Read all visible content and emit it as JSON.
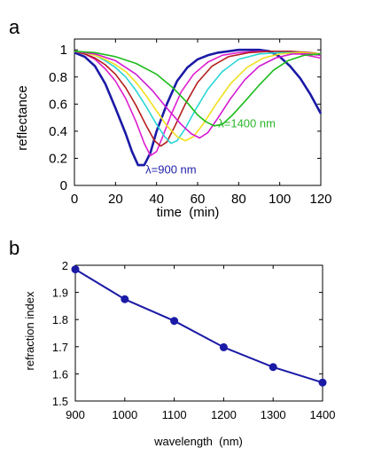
{
  "chart_data": [
    {
      "panel_label": "a",
      "type": "line",
      "xlabel": "time  (min)",
      "ylabel": "reflectance",
      "xlim": [
        0,
        120
      ],
      "ylim": [
        0,
        1.08
      ],
      "xticks": [
        "0",
        "20",
        "40",
        "60",
        "80",
        "100",
        "120"
      ],
      "yticks": [
        "0",
        "0.2",
        "0.4",
        "0.6",
        "0.8",
        "1"
      ],
      "annotations": [
        {
          "text": "λ=900 nm",
          "x": 47,
          "y": 0.09,
          "color": "#1f1fa8"
        },
        {
          "text": "λ=1400 nm",
          "x": 84,
          "y": 0.43,
          "color": "#2bb52b"
        }
      ],
      "series": [
        {
          "color": "#1a1aa6",
          "values": [
            [
              0,
              0.98
            ],
            [
              5,
              0.95
            ],
            [
              10,
              0.88
            ],
            [
              15,
              0.75
            ],
            [
              20,
              0.57
            ],
            [
              25,
              0.38
            ],
            [
              28,
              0.25
            ],
            [
              31,
              0.15
            ],
            [
              34,
              0.15
            ],
            [
              37,
              0.24
            ],
            [
              40,
              0.4
            ],
            [
              45,
              0.6
            ],
            [
              50,
              0.77
            ],
            [
              55,
              0.87
            ],
            [
              60,
              0.93
            ],
            [
              65,
              0.96
            ],
            [
              70,
              0.98
            ],
            [
              75,
              0.99
            ],
            [
              80,
              1.0
            ],
            [
              85,
              1.0
            ],
            [
              90,
              1.0
            ],
            [
              95,
              0.99
            ],
            [
              100,
              0.95
            ],
            [
              105,
              0.88
            ],
            [
              110,
              0.79
            ],
            [
              115,
              0.67
            ],
            [
              120,
              0.53
            ]
          ]
        },
        {
          "color": "#e01ecf",
          "values": [
            [
              0,
              0.99
            ],
            [
              5,
              0.97
            ],
            [
              10,
              0.93
            ],
            [
              15,
              0.86
            ],
            [
              20,
              0.77
            ],
            [
              25,
              0.64
            ],
            [
              30,
              0.47
            ],
            [
              34,
              0.31
            ],
            [
              37,
              0.22
            ],
            [
              40,
              0.25
            ],
            [
              43,
              0.36
            ],
            [
              47,
              0.52
            ],
            [
              52,
              0.69
            ],
            [
              58,
              0.82
            ],
            [
              65,
              0.91
            ],
            [
              72,
              0.96
            ],
            [
              80,
              0.98
            ],
            [
              90,
              0.99
            ],
            [
              100,
              0.99
            ],
            [
              110,
              0.97
            ],
            [
              120,
              0.94
            ]
          ]
        },
        {
          "color": "#b51c1c",
          "values": [
            [
              0,
              0.99
            ],
            [
              5,
              0.97
            ],
            [
              10,
              0.94
            ],
            [
              15,
              0.89
            ],
            [
              20,
              0.82
            ],
            [
              25,
              0.72
            ],
            [
              30,
              0.59
            ],
            [
              35,
              0.44
            ],
            [
              39,
              0.33
            ],
            [
              42,
              0.29
            ],
            [
              45,
              0.32
            ],
            [
              49,
              0.44
            ],
            [
              54,
              0.6
            ],
            [
              60,
              0.76
            ],
            [
              67,
              0.88
            ],
            [
              75,
              0.95
            ],
            [
              85,
              0.98
            ],
            [
              95,
              0.99
            ],
            [
              105,
              0.99
            ],
            [
              115,
              0.98
            ],
            [
              120,
              0.97
            ]
          ]
        },
        {
          "color": "#2ad6d6",
          "values": [
            [
              0,
              0.99
            ],
            [
              5,
              0.98
            ],
            [
              10,
              0.96
            ],
            [
              15,
              0.92
            ],
            [
              20,
              0.87
            ],
            [
              25,
              0.8
            ],
            [
              30,
              0.7
            ],
            [
              35,
              0.58
            ],
            [
              40,
              0.45
            ],
            [
              44,
              0.36
            ],
            [
              47,
              0.31
            ],
            [
              50,
              0.33
            ],
            [
              54,
              0.42
            ],
            [
              59,
              0.56
            ],
            [
              65,
              0.71
            ],
            [
              72,
              0.84
            ],
            [
              80,
              0.93
            ],
            [
              90,
              0.97
            ],
            [
              100,
              0.98
            ],
            [
              110,
              0.98
            ],
            [
              120,
              0.97
            ]
          ]
        },
        {
          "color": "#f0e020",
          "values": [
            [
              0,
              0.99
            ],
            [
              5,
              0.98
            ],
            [
              10,
              0.96
            ],
            [
              15,
              0.93
            ],
            [
              20,
              0.89
            ],
            [
              25,
              0.84
            ],
            [
              30,
              0.76
            ],
            [
              35,
              0.66
            ],
            [
              40,
              0.55
            ],
            [
              45,
              0.44
            ],
            [
              50,
              0.36
            ],
            [
              54,
              0.33
            ],
            [
              58,
              0.36
            ],
            [
              63,
              0.46
            ],
            [
              69,
              0.6
            ],
            [
              76,
              0.75
            ],
            [
              84,
              0.87
            ],
            [
              92,
              0.94
            ],
            [
              100,
              0.97
            ],
            [
              110,
              0.98
            ],
            [
              120,
              0.97
            ]
          ]
        },
        {
          "color": "#d318d3",
          "values": [
            [
              0,
              0.99
            ],
            [
              10,
              0.97
            ],
            [
              20,
              0.92
            ],
            [
              30,
              0.82
            ],
            [
              38,
              0.7
            ],
            [
              45,
              0.57
            ],
            [
              52,
              0.45
            ],
            [
              57,
              0.38
            ],
            [
              61,
              0.35
            ],
            [
              65,
              0.39
            ],
            [
              70,
              0.5
            ],
            [
              76,
              0.64
            ],
            [
              83,
              0.78
            ],
            [
              90,
              0.88
            ],
            [
              98,
              0.94
            ],
            [
              106,
              0.97
            ],
            [
              114,
              0.97
            ],
            [
              120,
              0.96
            ]
          ]
        },
        {
          "color": "#1bbc1b",
          "values": [
            [
              0,
              0.99
            ],
            [
              10,
              0.98
            ],
            [
              20,
              0.95
            ],
            [
              30,
              0.9
            ],
            [
              40,
              0.82
            ],
            [
              48,
              0.72
            ],
            [
              55,
              0.61
            ],
            [
              60,
              0.52
            ],
            [
              64,
              0.47
            ],
            [
              68,
              0.44
            ],
            [
              72,
              0.45
            ],
            [
              77,
              0.52
            ],
            [
              83,
              0.62
            ],
            [
              90,
              0.74
            ],
            [
              97,
              0.85
            ],
            [
              104,
              0.92
            ],
            [
              112,
              0.96
            ],
            [
              120,
              0.97
            ]
          ]
        }
      ]
    },
    {
      "panel_label": "b",
      "type": "line",
      "xlabel": "wavelength  (nm)",
      "ylabel": "refraction index",
      "xlim": [
        900,
        1400
      ],
      "ylim": [
        1.5,
        2.0
      ],
      "xticks": [
        "900",
        "1000",
        "1100",
        "1200",
        "1300",
        "1400"
      ],
      "yticks": [
        "1.5",
        "1.6",
        "1.7",
        "1.8",
        "1.9",
        "2"
      ],
      "color": "#1a1aa6",
      "x": [
        900,
        1000,
        1100,
        1200,
        1300,
        1400
      ],
      "values": [
        1.985,
        1.875,
        1.795,
        1.698,
        1.625,
        1.568
      ]
    }
  ]
}
